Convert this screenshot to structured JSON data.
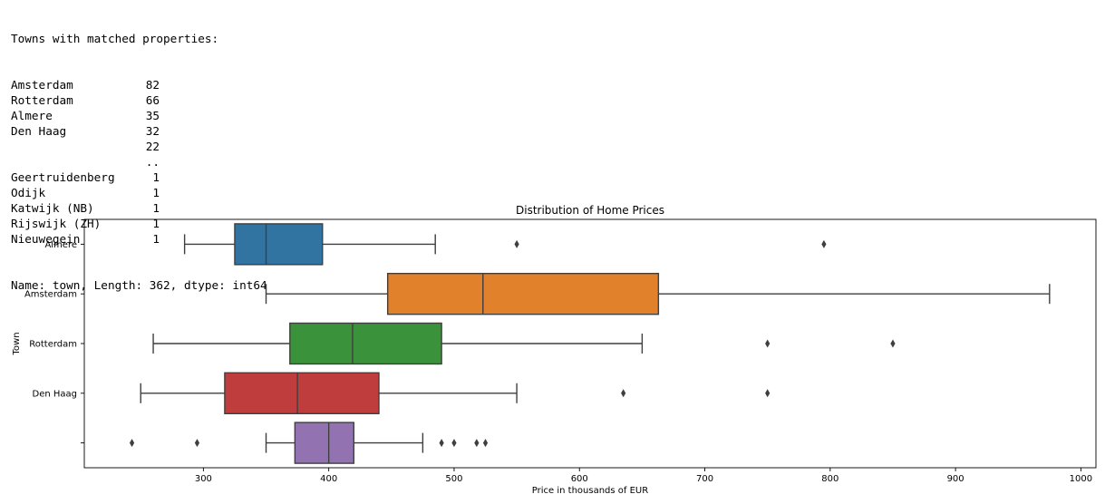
{
  "console": {
    "header": "Towns with matched properties:",
    "rows": [
      {
        "town": "Amsterdam",
        "count": "82"
      },
      {
        "town": "Rotterdam",
        "count": "66"
      },
      {
        "town": "Almere",
        "count": "35"
      },
      {
        "town": "Den Haag",
        "count": "32"
      },
      {
        "town": "",
        "count": "22"
      },
      {
        "town": "",
        "count": ".."
      },
      {
        "town": "Geertruidenberg",
        "count": "1"
      },
      {
        "town": "Odijk",
        "count": "1"
      },
      {
        "town": "Katwijk (NB)",
        "count": "1"
      },
      {
        "town": "Rijswijk (ZH)",
        "count": "1"
      },
      {
        "town": "Nieuwegein",
        "count": "1"
      }
    ],
    "footer": "Name: town, Length: 362, dtype: int64"
  },
  "chart_data": {
    "type": "boxplot",
    "orientation": "horizontal",
    "title": "Distribution of Home Prices",
    "xlabel": "Price in thousands of EUR",
    "ylabel": "Town",
    "xlim": [
      205,
      1012
    ],
    "xticks": [
      300,
      400,
      500,
      600,
      700,
      800,
      900,
      1000
    ],
    "grid": false,
    "categories": [
      {
        "name": "Almere",
        "color": "#3274a1",
        "whisker_low": 285,
        "q1": 325,
        "median": 350,
        "q3": 395,
        "whisker_high": 485,
        "outliers": [
          550,
          795
        ]
      },
      {
        "name": "Amsterdam",
        "color": "#e1812c",
        "whisker_low": 350,
        "q1": 447,
        "median": 523,
        "q3": 663,
        "whisker_high": 975,
        "outliers": []
      },
      {
        "name": "Rotterdam",
        "color": "#3a923a",
        "whisker_low": 260,
        "q1": 369,
        "median": 419,
        "q3": 490,
        "whisker_high": 650,
        "outliers": [
          750,
          850
        ]
      },
      {
        "name": "Den Haag",
        "color": "#c03d3e",
        "whisker_low": 250,
        "q1": 317,
        "median": 375,
        "q3": 440,
        "whisker_high": 550,
        "outliers": [
          635,
          750
        ]
      },
      {
        "name": "",
        "color": "#9372b2",
        "whisker_low": 350,
        "q1": 373,
        "median": 400,
        "q3": 420,
        "whisker_high": 475,
        "outliers": [
          243,
          295,
          490,
          500,
          518,
          525
        ]
      }
    ]
  }
}
